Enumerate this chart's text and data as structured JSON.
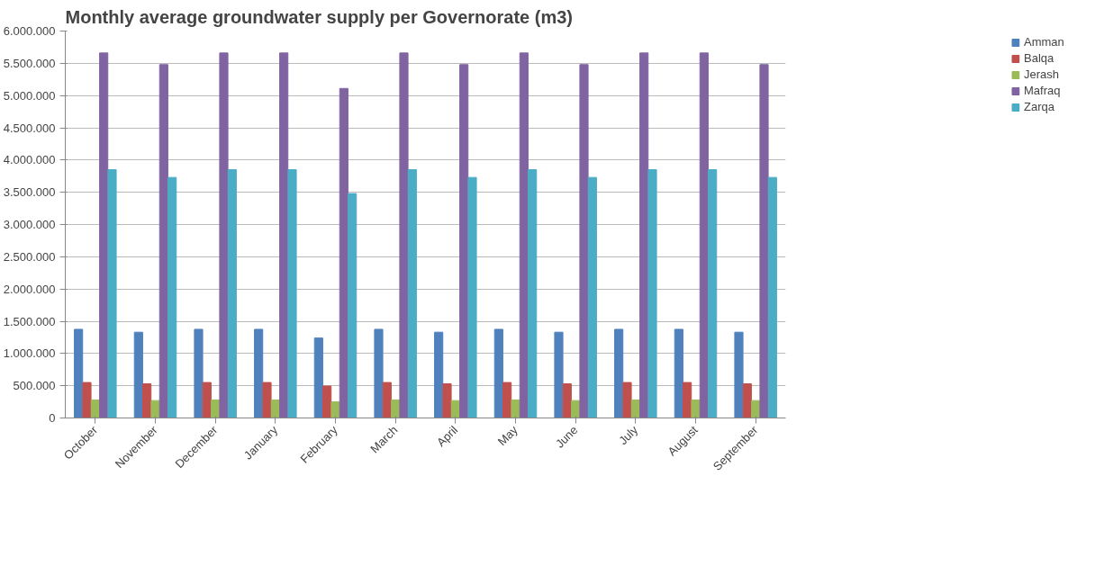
{
  "chart_data": {
    "type": "bar",
    "title": "Monthly average groundwater supply  per Governorate (m3)",
    "categories": [
      "October",
      "November",
      "December",
      "January",
      "February",
      "March",
      "April",
      "May",
      "June",
      "July",
      "August",
      "September"
    ],
    "series": [
      {
        "name": "Amman",
        "color": "#4f81bd",
        "values": [
          1375000,
          1330000,
          1375000,
          1375000,
          1240000,
          1375000,
          1330000,
          1375000,
          1330000,
          1375000,
          1375000,
          1330000
        ]
      },
      {
        "name": "Balqa",
        "color": "#c0504d",
        "values": [
          550000,
          530000,
          550000,
          550000,
          495000,
          550000,
          530000,
          550000,
          530000,
          550000,
          550000,
          530000
        ]
      },
      {
        "name": "Jerash",
        "color": "#9bbb59",
        "values": [
          280000,
          270000,
          280000,
          280000,
          250000,
          280000,
          270000,
          280000,
          270000,
          280000,
          280000,
          270000
        ]
      },
      {
        "name": "Mafraq",
        "color": "#8064a2",
        "values": [
          5660000,
          5480000,
          5660000,
          5660000,
          5110000,
          5660000,
          5480000,
          5660000,
          5480000,
          5660000,
          5660000,
          5480000
        ]
      },
      {
        "name": "Zarqa",
        "color": "#4bacc6",
        "values": [
          3850000,
          3730000,
          3850000,
          3850000,
          3480000,
          3850000,
          3730000,
          3850000,
          3730000,
          3850000,
          3850000,
          3730000
        ]
      }
    ],
    "ylim": [
      0,
      6000000
    ],
    "yticks": [
      {
        "value": 0,
        "label": "0"
      },
      {
        "value": 500000,
        "label": "500.000"
      },
      {
        "value": 1000000,
        "label": "1.000.000"
      },
      {
        "value": 1500000,
        "label": "1.500.000"
      },
      {
        "value": 2000000,
        "label": "2.000.000"
      },
      {
        "value": 2500000,
        "label": "2.500.000"
      },
      {
        "value": 3000000,
        "label": "3.000.000"
      },
      {
        "value": 3500000,
        "label": "3.500.000"
      },
      {
        "value": 4000000,
        "label": "4.000.000"
      },
      {
        "value": 4500000,
        "label": "4.500.000"
      },
      {
        "value": 5000000,
        "label": "5.000.000"
      },
      {
        "value": 5500000,
        "label": "5.500.000"
      },
      {
        "value": 6000000,
        "label": "6.000.000"
      }
    ],
    "grid": "y",
    "legend": "top right"
  }
}
